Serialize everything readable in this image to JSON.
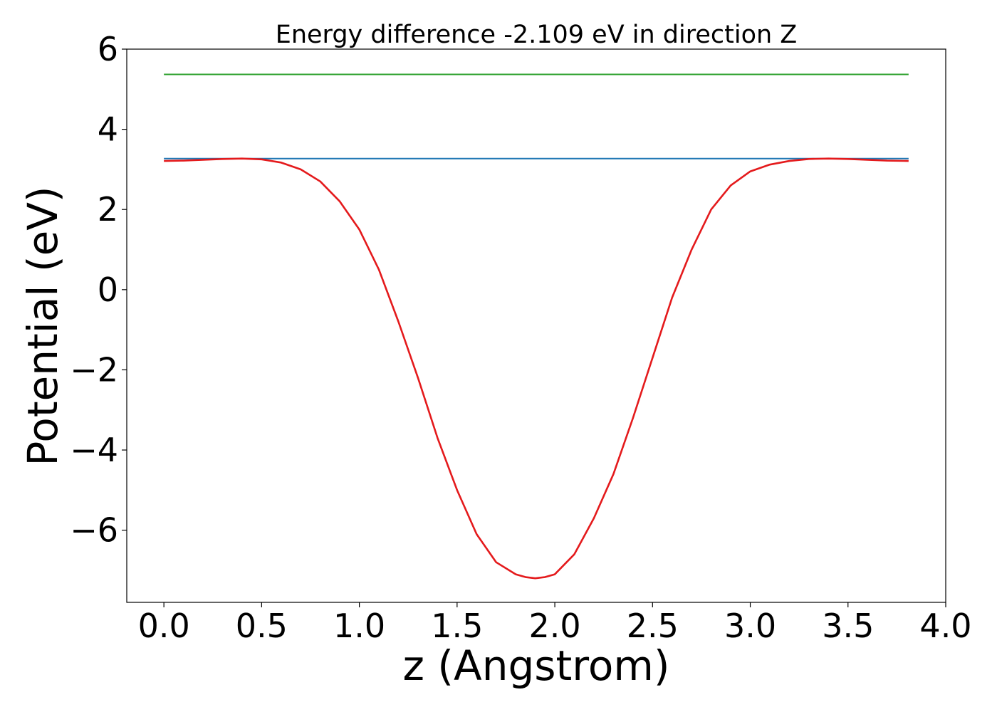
{
  "chart_data": {
    "type": "line",
    "title": "Energy difference -2.109 eV in direction Z",
    "xlabel": "z (Angstrom)",
    "ylabel": "Potential (eV)",
    "xlim": [
      -0.19,
      4.0
    ],
    "ylim": [
      -7.8,
      6.0
    ],
    "xticks": [
      "0.0",
      "0.5",
      "1.0",
      "1.5",
      "2.0",
      "2.5",
      "3.0",
      "3.5",
      "4.0"
    ],
    "yticks": [
      "6",
      "4",
      "2",
      "0",
      "−2",
      "−4",
      "−6"
    ],
    "grid": false,
    "legend": "none",
    "series": [
      {
        "color": "#2ca02c",
        "x": [
          0.0,
          3.81
        ],
        "y": [
          5.37,
          5.37
        ]
      },
      {
        "color": "#1f77b4",
        "x": [
          0.0,
          3.81
        ],
        "y": [
          3.27,
          3.27
        ]
      },
      {
        "color": "#e41a1c",
        "x": [
          0.0,
          0.1,
          0.2,
          0.3,
          0.4,
          0.5,
          0.6,
          0.7,
          0.8,
          0.9,
          1.0,
          1.1,
          1.2,
          1.3,
          1.4,
          1.5,
          1.6,
          1.7,
          1.8,
          1.85,
          1.9,
          1.95,
          2.0,
          2.1,
          2.2,
          2.3,
          2.4,
          2.5,
          2.6,
          2.7,
          2.8,
          2.9,
          3.0,
          3.1,
          3.2,
          3.3,
          3.4,
          3.5,
          3.6,
          3.7,
          3.81
        ],
        "y": [
          3.21,
          3.22,
          3.24,
          3.26,
          3.27,
          3.25,
          3.17,
          3.0,
          2.7,
          2.2,
          1.5,
          0.5,
          -0.8,
          -2.2,
          -3.7,
          -5.0,
          -6.1,
          -6.8,
          -7.1,
          -7.17,
          -7.2,
          -7.17,
          -7.1,
          -6.6,
          -5.7,
          -4.6,
          -3.2,
          -1.7,
          -0.2,
          1.0,
          2.0,
          2.6,
          2.95,
          3.12,
          3.21,
          3.26,
          3.27,
          3.26,
          3.24,
          3.22,
          3.21
        ]
      }
    ]
  }
}
